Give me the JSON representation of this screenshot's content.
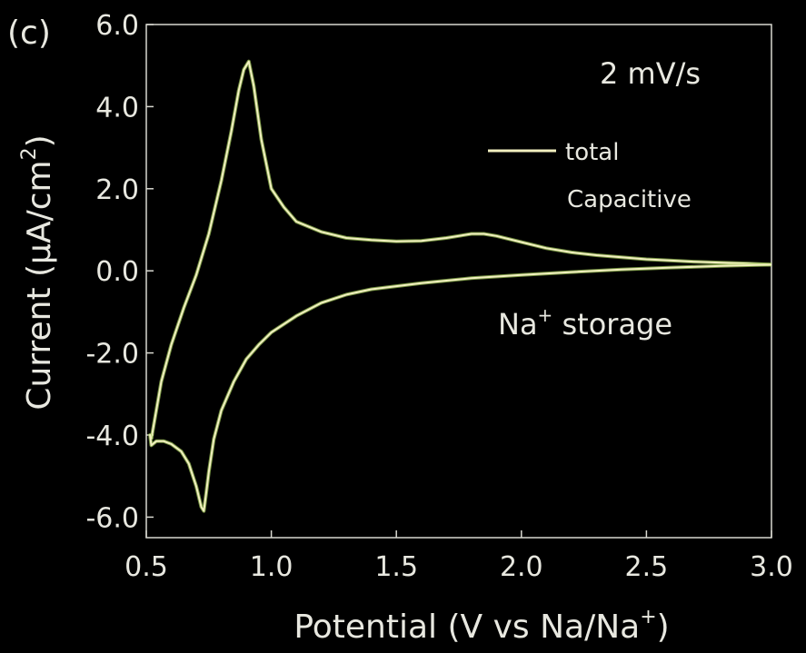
{
  "chart_data": {
    "type": "line",
    "panel_label": "(c)",
    "xlabel": "Potential (V vs Na/Na",
    "xlabel_sup": "+",
    "xlabel_end": ")",
    "ylabel": "Current (µA/cm",
    "ylabel_sup": "2",
    "ylabel_end": ")",
    "xlim": [
      0.5,
      3.0
    ],
    "ylim": [
      -6.5,
      6.0
    ],
    "x_ticks": [
      {
        "value": 0.5,
        "label": "0.5"
      },
      {
        "value": 1.0,
        "label": "1.0"
      },
      {
        "value": 1.5,
        "label": "1.5"
      },
      {
        "value": 2.0,
        "label": "2.0"
      },
      {
        "value": 2.5,
        "label": "2.5"
      },
      {
        "value": 3.0,
        "label": "3.0"
      }
    ],
    "y_ticks": [
      {
        "value": 6.0,
        "label": "6.0"
      },
      {
        "value": 4.0,
        "label": "4.0"
      },
      {
        "value": 2.0,
        "label": "2.0"
      },
      {
        "value": 0.0,
        "label": "0.0"
      },
      {
        "value": -2.0,
        "label": "-2.0"
      },
      {
        "value": -4.0,
        "label": "-4.0"
      },
      {
        "value": -6.0,
        "label": "-6.0"
      }
    ],
    "grid": false,
    "annotations": {
      "scan_rate": "2 mV/s",
      "storage_text": "Na",
      "storage_sup": "+",
      "storage_end": " storage"
    },
    "legend": {
      "placement": "top-right",
      "entries": [
        {
          "label": "total",
          "color": "#f2f0c0",
          "line": true
        },
        {
          "label": "Capacitive",
          "color": "#7fd8d8",
          "line": false
        }
      ]
    },
    "series": [
      {
        "name": "total",
        "color": "#f2f0c0",
        "upper": {
          "x": [
            0.52,
            0.56,
            0.6,
            0.65,
            0.7,
            0.75,
            0.8,
            0.84,
            0.87,
            0.89,
            0.91,
            0.93,
            0.96,
            1.0,
            1.05,
            1.1,
            1.2,
            1.3,
            1.4,
            1.5,
            1.6,
            1.7,
            1.8,
            1.85,
            1.9,
            2.0,
            2.1,
            2.2,
            2.3,
            2.4,
            2.5,
            2.6,
            2.7,
            2.8,
            2.9,
            3.0
          ],
          "y": [
            -4.1,
            -2.7,
            -1.8,
            -0.9,
            -0.1,
            0.9,
            2.2,
            3.4,
            4.4,
            4.9,
            5.1,
            4.5,
            3.2,
            2.0,
            1.55,
            1.2,
            0.95,
            0.8,
            0.75,
            0.72,
            0.73,
            0.8,
            0.9,
            0.9,
            0.85,
            0.7,
            0.55,
            0.45,
            0.38,
            0.33,
            0.28,
            0.25,
            0.22,
            0.2,
            0.18,
            0.15
          ]
        },
        "lower": {
          "x": [
            3.0,
            2.8,
            2.6,
            2.4,
            2.2,
            2.0,
            1.8,
            1.6,
            1.4,
            1.3,
            1.2,
            1.1,
            1.0,
            0.95,
            0.9,
            0.85,
            0.8,
            0.77,
            0.75,
            0.74,
            0.73,
            0.72,
            0.7,
            0.67,
            0.64,
            0.6,
            0.57,
            0.54,
            0.52,
            0.515,
            0.52
          ],
          "y": [
            0.15,
            0.12,
            0.08,
            0.03,
            -0.03,
            -0.1,
            -0.18,
            -0.3,
            -0.45,
            -0.58,
            -0.78,
            -1.1,
            -1.5,
            -1.8,
            -2.15,
            -2.7,
            -3.4,
            -4.1,
            -4.9,
            -5.4,
            -5.85,
            -5.75,
            -5.25,
            -4.7,
            -4.4,
            -4.22,
            -4.15,
            -4.15,
            -4.25,
            -4.0,
            -4.1
          ]
        }
      }
    ]
  }
}
